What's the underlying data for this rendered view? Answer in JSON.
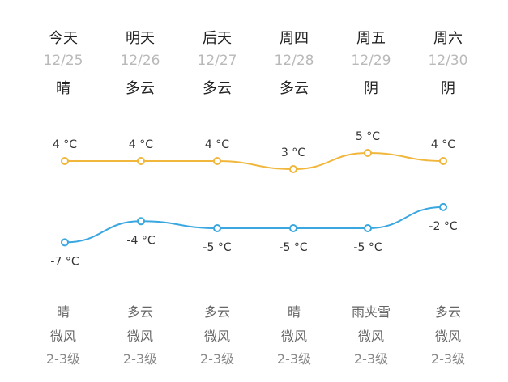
{
  "colors": {
    "high": "#f0b73c",
    "low": "#3aa7e0"
  },
  "days": [
    {
      "day": "今天",
      "date": "12/25",
      "cond": "晴",
      "high": "4 °C",
      "low": "-7 °C",
      "night": "晴",
      "wind": "微风",
      "level": "2-3级"
    },
    {
      "day": "明天",
      "date": "12/26",
      "cond": "多云",
      "high": "4 °C",
      "low": "-4 °C",
      "night": "多云",
      "wind": "微风",
      "level": "2-3级"
    },
    {
      "day": "后天",
      "date": "12/27",
      "cond": "多云",
      "high": "4 °C",
      "low": "-5 °C",
      "night": "多云",
      "wind": "微风",
      "level": "2-3级"
    },
    {
      "day": "周四",
      "date": "12/28",
      "cond": "多云",
      "high": "3 °C",
      "low": "-5 °C",
      "night": "晴",
      "wind": "微风",
      "level": "2-3级"
    },
    {
      "day": "周五",
      "date": "12/29",
      "cond": "阴",
      "high": "5 °C",
      "low": "-5 °C",
      "night": "雨夹雪",
      "wind": "微风",
      "level": "2-3级"
    },
    {
      "day": "周六",
      "date": "12/30",
      "cond": "阴",
      "high": "4 °C",
      "low": "-2 °C",
      "night": "多云",
      "wind": "微风",
      "level": "2-3级"
    }
  ],
  "chart_data": {
    "type": "line",
    "categories": [
      "12/25",
      "12/26",
      "12/27",
      "12/28",
      "12/29",
      "12/30"
    ],
    "series": [
      {
        "name": "",
        "values": [
          4,
          4,
          4,
          3,
          5,
          4
        ]
      },
      {
        "name": "",
        "values": [
          -7,
          -4,
          -5,
          -5,
          -5,
          -2
        ]
      }
    ],
    "ylim": [
      -8,
      6
    ],
    "grid": false
  }
}
